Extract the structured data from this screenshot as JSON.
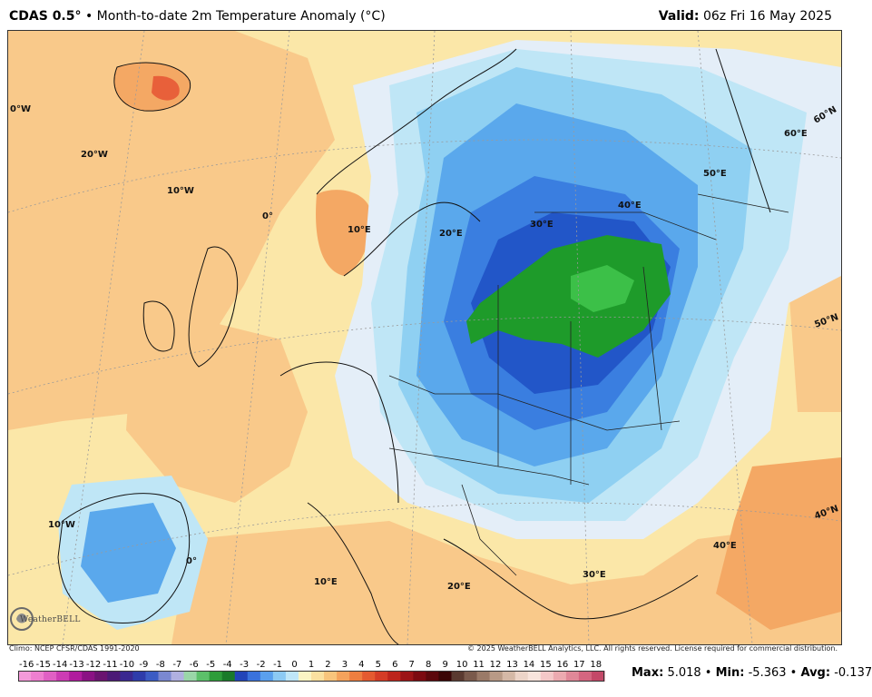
{
  "header": {
    "model": "CDAS 0.5°",
    "separator": "•",
    "title": "Month-to-date 2m Temperature Anomaly (°C)",
    "valid_label": "Valid:",
    "valid_value": "06z Fri 16 May 2025"
  },
  "map": {
    "region": "Europe",
    "projection": "conic",
    "labels": {
      "lon_30w": "0°W",
      "lon_20w": "20°W",
      "lon_10w_n": "10°W",
      "lon_0_n": "0°",
      "lon_10e_n": "10°E",
      "lon_20e_n": "20°E",
      "lon_30e_n": "30°E",
      "lon_40e_n": "40°E",
      "lon_50e": "50°E",
      "lon_60e": "60°E",
      "lat_60n": "60°N",
      "lat_50n": "50°N",
      "lat_40n": "40°N",
      "lon_10w_s": "10°W",
      "lon_0_s": "0°",
      "lon_10e_s": "10°E",
      "lon_20e_s": "20°E",
      "lon_30e_s": "30°E",
      "lon_40e_s": "40°E"
    },
    "colors": {
      "warm_1": "#fbe7a8",
      "warm_2": "#f9c98a",
      "warm_3": "#f4a864",
      "warm_4": "#ee8a4a",
      "warm_5": "#e8603a",
      "cool_1": "#e4eef8",
      "cool_2": "#bfe6f6",
      "cool_3": "#8fd0f2",
      "cool_4": "#5aa8ec",
      "cool_5": "#3a7ee0",
      "cool_6": "#2256c8",
      "green_1": "#1e9b2a",
      "green_2": "#3cc048"
    }
  },
  "footer": {
    "climo": "Climo: NCEP CFSR/CDAS 1991-2020",
    "copyright": "© 2025 WeatherBELL Analytics, LLC. All rights reserved. License required for commercial distribution.",
    "logo_text": "WeatherBELL"
  },
  "colorbar": {
    "ticks": [
      "-16",
      "-15",
      "-14",
      "-13",
      "-12",
      "-11",
      "-10",
      "-9",
      "-8",
      "-7",
      "-6",
      "-5",
      "-4",
      "-3",
      "-2",
      "-1",
      "0",
      "1",
      "2",
      "3",
      "4",
      "5",
      "6",
      "7",
      "8",
      "9",
      "10",
      "11",
      "12",
      "13",
      "14",
      "15",
      "16",
      "17",
      "18"
    ],
    "colors": [
      "#f49ad9",
      "#ee7fd0",
      "#e060c4",
      "#cc3cb4",
      "#b01c9e",
      "#8a1284",
      "#6a1470",
      "#4c1a76",
      "#3a2890",
      "#2e3caa",
      "#3c5cc4",
      "#7a88d0",
      "#b0b0e0",
      "#9ad6a8",
      "#5cc06a",
      "#2e9c3a",
      "#1a7a2a",
      "#2244b8",
      "#3a72dc",
      "#5aa0ee",
      "#8ccaf4",
      "#bfe6f8",
      "#fbf4c4",
      "#fbe0a0",
      "#f8c47c",
      "#f4a25c",
      "#ee7e40",
      "#e45a30",
      "#d43c26",
      "#bc241c",
      "#9c1416",
      "#7c0a10",
      "#5c080c",
      "#3a0606",
      "#5a3a30",
      "#7a5a4c",
      "#9a7a68",
      "#b89a86",
      "#d4b8a6",
      "#ecd4c8",
      "#f8e4dc",
      "#f4c8c8",
      "#ecaab0",
      "#e08898",
      "#d46680",
      "#c44868"
    ]
  },
  "stats": {
    "max_label": "Max:",
    "max_value": "5.018",
    "min_label": "Min:",
    "min_value": "-5.363",
    "avg_label": "Avg:",
    "avg_value": "-0.137",
    "sep": "•"
  }
}
